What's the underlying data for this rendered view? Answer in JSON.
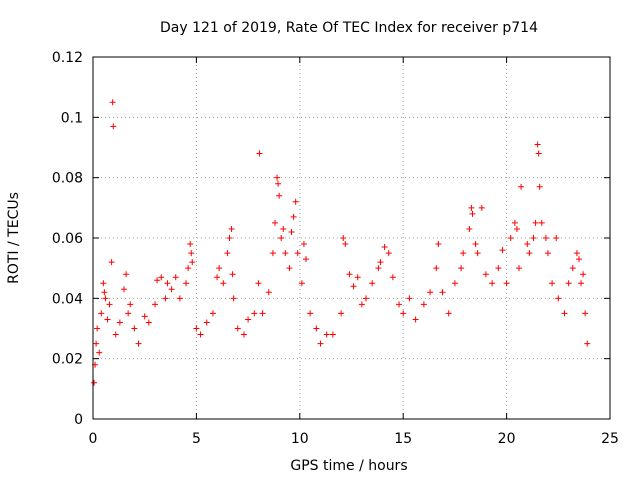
{
  "chart_data": {
    "type": "scatter",
    "title": "Day 121 of 2019, Rate Of TEC Index for receiver p714",
    "xlabel": "GPS time / hours",
    "ylabel": "ROTI / TECUs",
    "xlim": [
      0,
      25
    ],
    "ylim": [
      0,
      0.12
    ],
    "xticks": [
      0,
      5,
      10,
      15,
      20,
      25
    ],
    "xtick_labels": [
      "0",
      "5",
      "10",
      "15",
      "20",
      "25"
    ],
    "yticks": [
      0,
      0.02,
      0.04,
      0.06,
      0.08,
      0.1,
      0.12
    ],
    "ytick_labels": [
      "0",
      "0.02",
      "0.04",
      "0.06",
      "0.08",
      "0.1",
      "0.12"
    ],
    "grid": true,
    "marker": "plus",
    "color": "#ff0000",
    "series": [
      {
        "name": "ROTI",
        "points": [
          [
            0.05,
            0.012
          ],
          [
            0.1,
            0.018
          ],
          [
            0.15,
            0.025
          ],
          [
            0.2,
            0.03
          ],
          [
            0.3,
            0.022
          ],
          [
            0.4,
            0.035
          ],
          [
            0.5,
            0.045
          ],
          [
            0.55,
            0.042
          ],
          [
            0.6,
            0.04
          ],
          [
            0.7,
            0.033
          ],
          [
            0.8,
            0.038
          ],
          [
            0.9,
            0.052
          ],
          [
            0.95,
            0.105
          ],
          [
            0.98,
            0.097
          ],
          [
            1.1,
            0.028
          ],
          [
            1.3,
            0.032
          ],
          [
            1.5,
            0.043
          ],
          [
            1.6,
            0.048
          ],
          [
            1.7,
            0.035
          ],
          [
            1.8,
            0.038
          ],
          [
            2.0,
            0.03
          ],
          [
            2.2,
            0.025
          ],
          [
            2.5,
            0.034
          ],
          [
            2.7,
            0.032
          ],
          [
            3.0,
            0.038
          ],
          [
            3.1,
            0.046
          ],
          [
            3.3,
            0.047
          ],
          [
            3.5,
            0.04
          ],
          [
            3.6,
            0.045
          ],
          [
            3.8,
            0.043
          ],
          [
            4.0,
            0.047
          ],
          [
            4.2,
            0.04
          ],
          [
            4.5,
            0.045
          ],
          [
            4.6,
            0.05
          ],
          [
            4.7,
            0.058
          ],
          [
            4.75,
            0.055
          ],
          [
            4.8,
            0.052
          ],
          [
            5.0,
            0.03
          ],
          [
            5.2,
            0.028
          ],
          [
            5.5,
            0.032
          ],
          [
            5.8,
            0.035
          ],
          [
            6.0,
            0.047
          ],
          [
            6.1,
            0.05
          ],
          [
            6.3,
            0.045
          ],
          [
            6.5,
            0.055
          ],
          [
            6.6,
            0.06
          ],
          [
            6.7,
            0.063
          ],
          [
            6.75,
            0.048
          ],
          [
            6.8,
            0.04
          ],
          [
            7.0,
            0.03
          ],
          [
            7.3,
            0.028
          ],
          [
            7.5,
            0.033
          ],
          [
            7.8,
            0.035
          ],
          [
            8.0,
            0.045
          ],
          [
            8.05,
            0.088
          ],
          [
            8.2,
            0.035
          ],
          [
            8.5,
            0.042
          ],
          [
            8.7,
            0.055
          ],
          [
            8.8,
            0.065
          ],
          [
            8.9,
            0.08
          ],
          [
            8.95,
            0.078
          ],
          [
            9.0,
            0.074
          ],
          [
            9.1,
            0.06
          ],
          [
            9.2,
            0.063
          ],
          [
            9.3,
            0.055
          ],
          [
            9.5,
            0.05
          ],
          [
            9.6,
            0.062
          ],
          [
            9.7,
            0.067
          ],
          [
            9.8,
            0.072
          ],
          [
            9.9,
            0.055
          ],
          [
            10.1,
            0.045
          ],
          [
            10.2,
            0.058
          ],
          [
            10.3,
            0.053
          ],
          [
            10.5,
            0.035
          ],
          [
            10.8,
            0.03
          ],
          [
            11.0,
            0.025
          ],
          [
            11.3,
            0.028
          ],
          [
            11.6,
            0.028
          ],
          [
            12.0,
            0.035
          ],
          [
            12.1,
            0.06
          ],
          [
            12.2,
            0.058
          ],
          [
            12.4,
            0.048
          ],
          [
            12.6,
            0.044
          ],
          [
            12.8,
            0.047
          ],
          [
            13.0,
            0.038
          ],
          [
            13.2,
            0.04
          ],
          [
            13.5,
            0.045
          ],
          [
            13.8,
            0.05
          ],
          [
            13.9,
            0.052
          ],
          [
            14.1,
            0.057
          ],
          [
            14.3,
            0.055
          ],
          [
            14.5,
            0.047
          ],
          [
            14.8,
            0.038
          ],
          [
            15.0,
            0.035
          ],
          [
            15.3,
            0.04
          ],
          [
            15.6,
            0.033
          ],
          [
            16.0,
            0.038
          ],
          [
            16.3,
            0.042
          ],
          [
            16.6,
            0.05
          ],
          [
            16.7,
            0.058
          ],
          [
            16.9,
            0.042
          ],
          [
            17.2,
            0.035
          ],
          [
            17.5,
            0.045
          ],
          [
            17.8,
            0.05
          ],
          [
            17.9,
            0.055
          ],
          [
            18.2,
            0.063
          ],
          [
            18.3,
            0.07
          ],
          [
            18.35,
            0.068
          ],
          [
            18.5,
            0.058
          ],
          [
            18.6,
            0.055
          ],
          [
            18.8,
            0.07
          ],
          [
            19.0,
            0.048
          ],
          [
            19.3,
            0.045
          ],
          [
            19.6,
            0.05
          ],
          [
            19.8,
            0.056
          ],
          [
            20.0,
            0.045
          ],
          [
            20.2,
            0.06
          ],
          [
            20.4,
            0.065
          ],
          [
            20.5,
            0.063
          ],
          [
            20.6,
            0.05
          ],
          [
            20.7,
            0.077
          ],
          [
            21.0,
            0.058
          ],
          [
            21.1,
            0.055
          ],
          [
            21.3,
            0.06
          ],
          [
            21.4,
            0.065
          ],
          [
            21.5,
            0.091
          ],
          [
            21.55,
            0.088
          ],
          [
            21.6,
            0.077
          ],
          [
            21.7,
            0.065
          ],
          [
            21.9,
            0.06
          ],
          [
            22.0,
            0.055
          ],
          [
            22.2,
            0.045
          ],
          [
            22.4,
            0.06
          ],
          [
            22.5,
            0.04
          ],
          [
            22.8,
            0.035
          ],
          [
            23.0,
            0.045
          ],
          [
            23.2,
            0.05
          ],
          [
            23.4,
            0.055
          ],
          [
            23.5,
            0.053
          ],
          [
            23.6,
            0.045
          ],
          [
            23.7,
            0.048
          ],
          [
            23.8,
            0.035
          ],
          [
            23.9,
            0.025
          ]
        ]
      }
    ]
  }
}
